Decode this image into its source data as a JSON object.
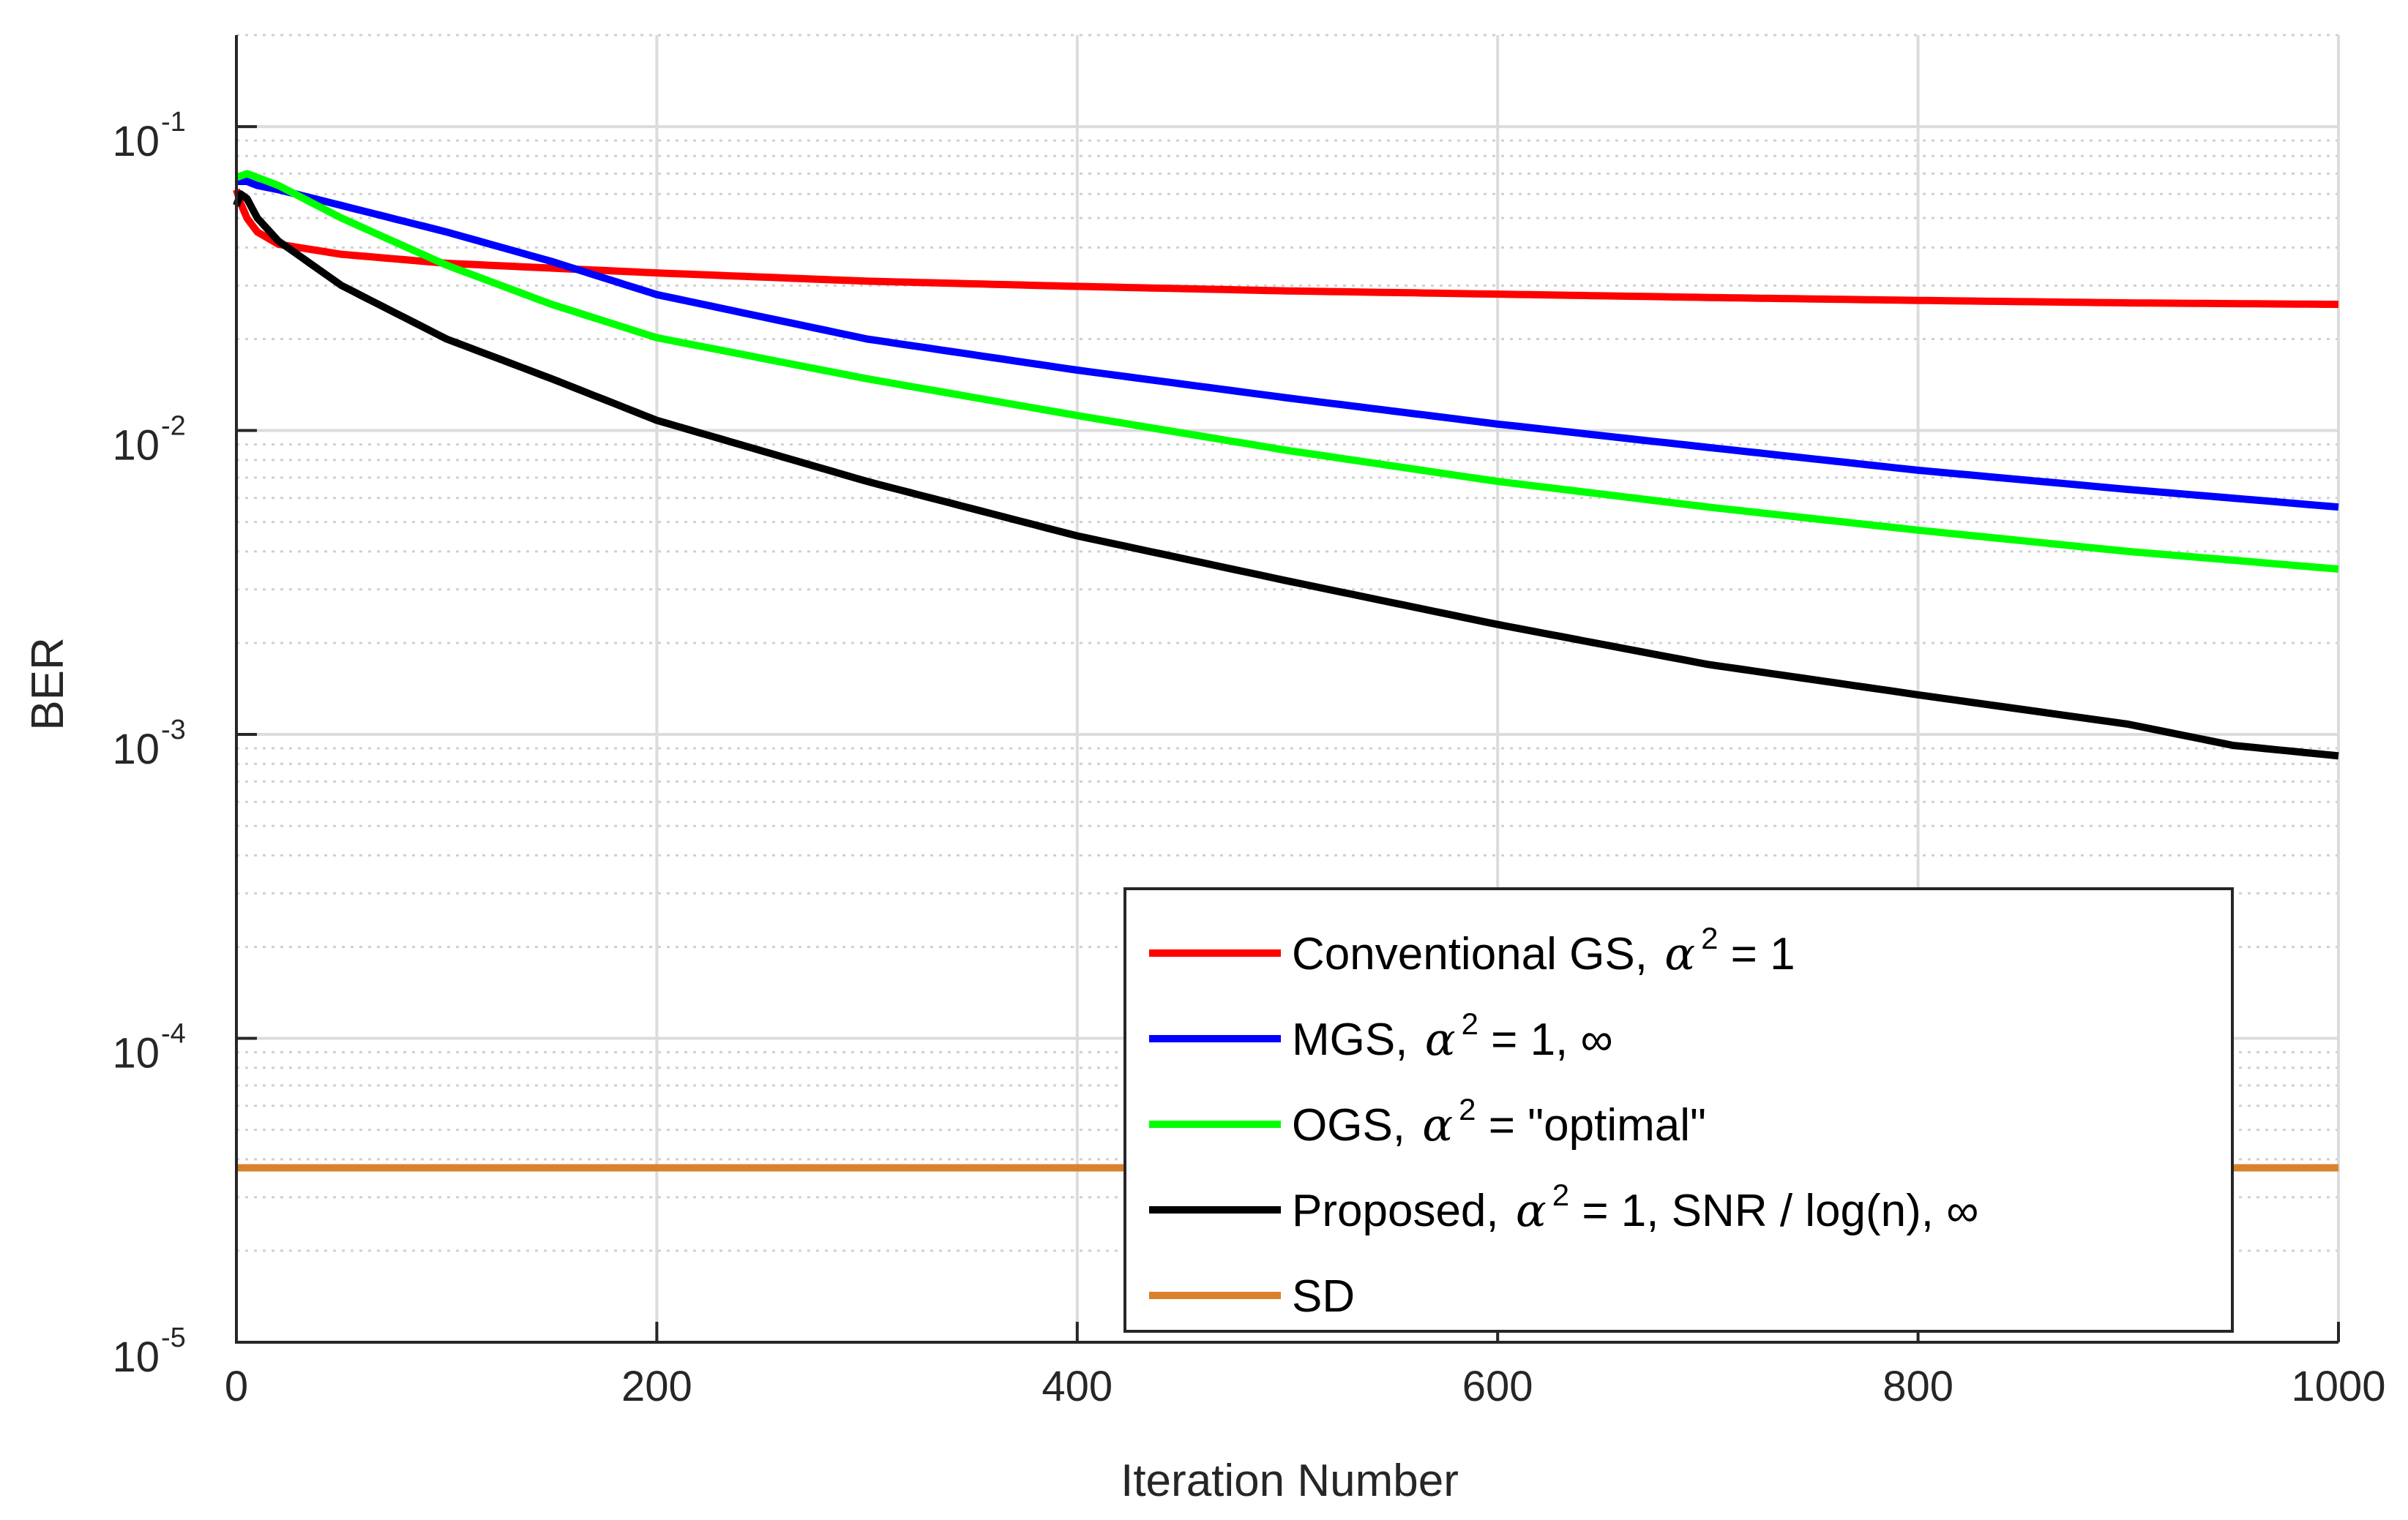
{
  "chart_data": {
    "type": "line",
    "yscale": "log",
    "xlabel": "Iteration Number",
    "ylabel": "BER",
    "xlim": [
      0,
      1000
    ],
    "ylim": [
      1e-05,
      0.2
    ],
    "grid": true,
    "legend_position": "bottom-right",
    "x_ticks": [
      {
        "value": 0,
        "label": "0"
      },
      {
        "value": 200,
        "label": "200"
      },
      {
        "value": 400,
        "label": "400"
      },
      {
        "value": 600,
        "label": "600"
      },
      {
        "value": 800,
        "label": "800"
      },
      {
        "value": 1000,
        "label": "1000"
      }
    ],
    "y_ticks": [
      {
        "value": 0.1,
        "base": "10",
        "exp": "-1"
      },
      {
        "value": 0.01,
        "base": "10",
        "exp": "-2"
      },
      {
        "value": 0.001,
        "base": "10",
        "exp": "-3"
      },
      {
        "value": 0.0001,
        "base": "10",
        "exp": "-4"
      },
      {
        "value": 1e-05,
        "base": "10",
        "exp": "-5"
      }
    ],
    "series": [
      {
        "name": "Conventional GS, α² = 1",
        "legend": {
          "pre": "Conventional GS, ",
          "sym": "α",
          "sup": "2",
          "post": " = 1"
        },
        "color": "#ff0000",
        "x": [
          0,
          2,
          5,
          10,
          20,
          50,
          100,
          200,
          300,
          400,
          500,
          600,
          700,
          800,
          900,
          1000
        ],
        "y": [
          0.062,
          0.056,
          0.05,
          0.045,
          0.041,
          0.038,
          0.0355,
          0.033,
          0.031,
          0.0298,
          0.0288,
          0.0281,
          0.0274,
          0.0268,
          0.0263,
          0.026
        ]
      },
      {
        "name": "MGS, α² = 1, ∞",
        "legend": {
          "pre": "MGS, ",
          "sym": "α",
          "sup": "2",
          "post": " = 1, ∞"
        },
        "color": "#0000ff",
        "x": [
          0,
          5,
          10,
          20,
          50,
          100,
          150,
          200,
          300,
          400,
          500,
          600,
          700,
          800,
          900,
          1000
        ],
        "y": [
          0.066,
          0.066,
          0.064,
          0.062,
          0.055,
          0.045,
          0.036,
          0.028,
          0.02,
          0.0158,
          0.0128,
          0.0105,
          0.0088,
          0.0074,
          0.0064,
          0.0056
        ]
      },
      {
        "name": "OGS, α² = \"optimal\"",
        "legend": {
          "pre": "OGS, ",
          "sym": "α",
          "sup": "2",
          "post": " = \"optimal\""
        },
        "color": "#00ff00",
        "x": [
          0,
          5,
          10,
          20,
          50,
          100,
          150,
          200,
          300,
          400,
          500,
          600,
          700,
          800,
          900,
          1000
        ],
        "y": [
          0.068,
          0.07,
          0.068,
          0.064,
          0.05,
          0.035,
          0.026,
          0.0202,
          0.0148,
          0.0112,
          0.0086,
          0.0068,
          0.0056,
          0.0047,
          0.004,
          0.0035
        ]
      },
      {
        "name": "Proposed, α² = 1, SNR / log(n), ∞",
        "legend": {
          "pre": "Proposed, ",
          "sym": "α",
          "sup": "2",
          "post": " = 1, SNR / log(n), ∞"
        },
        "color": "#000000",
        "x": [
          0,
          2,
          5,
          10,
          20,
          50,
          100,
          150,
          200,
          300,
          400,
          500,
          600,
          700,
          800,
          900,
          950,
          1000
        ],
        "y": [
          0.055,
          0.06,
          0.058,
          0.05,
          0.042,
          0.03,
          0.02,
          0.0148,
          0.0108,
          0.0068,
          0.0045,
          0.0032,
          0.0023,
          0.0017,
          0.00135,
          0.00108,
          0.00092,
          0.00085
        ]
      },
      {
        "name": "SD",
        "legend": {
          "pre": "SD",
          "sym": "",
          "sup": "",
          "post": ""
        },
        "color": "#d9822b",
        "x": [
          0,
          1000
        ],
        "y": [
          3.75e-05,
          3.75e-05
        ]
      }
    ]
  }
}
